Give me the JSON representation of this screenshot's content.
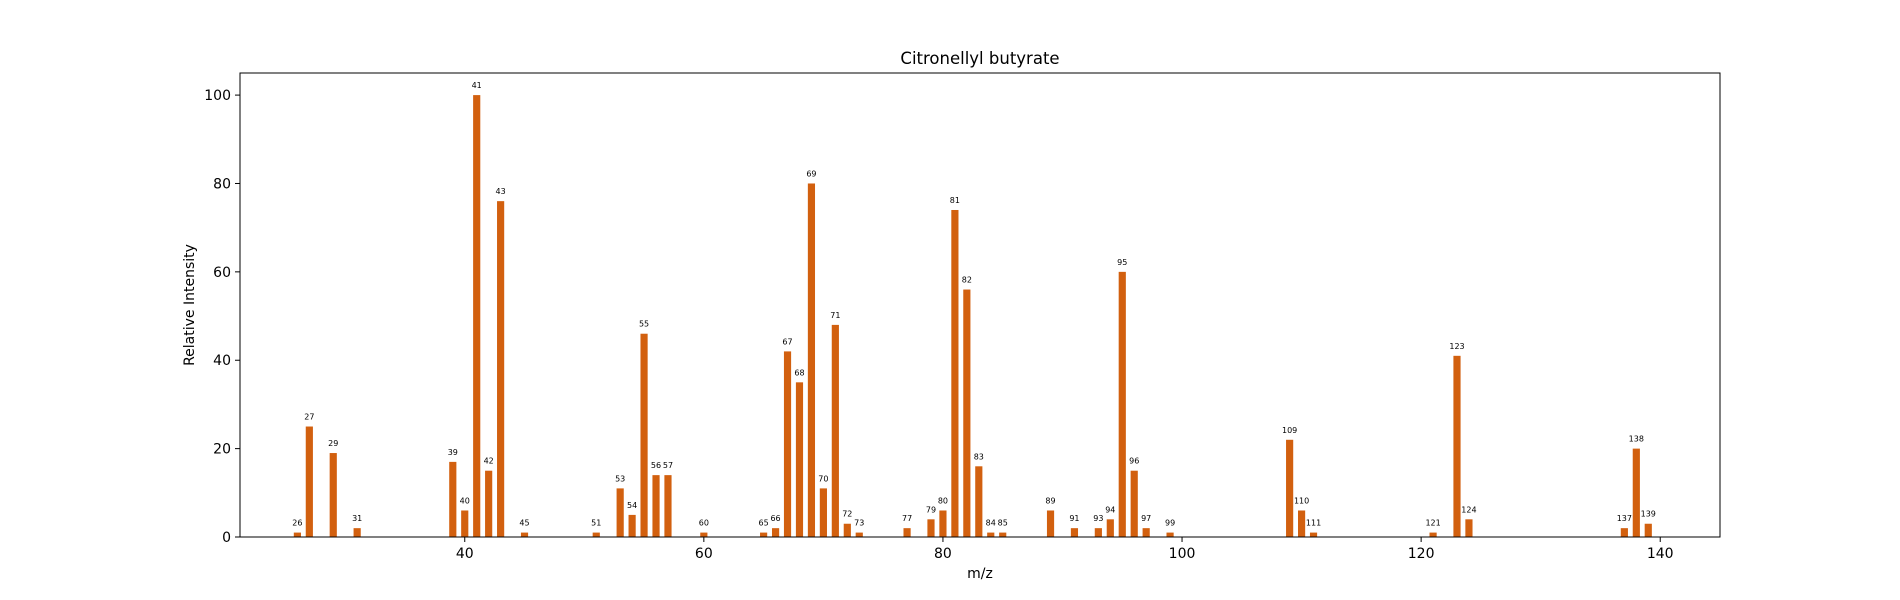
{
  "chart_data": {
    "type": "bar",
    "title": "Citronellyl butyrate",
    "xlabel": "m/z",
    "ylabel": "Relative Intensity",
    "xlim": [
      21.2,
      145.0
    ],
    "ylim": [
      0,
      105
    ],
    "xticks": [
      40,
      60,
      80,
      100,
      120,
      140
    ],
    "yticks": [
      0,
      20,
      40,
      60,
      80,
      100
    ],
    "grid": false,
    "bar_color": "#d2600f",
    "series": [
      {
        "x": [
          26,
          27,
          29,
          31,
          39,
          40,
          41,
          42,
          43,
          45,
          51,
          53,
          54,
          55,
          56,
          57,
          60,
          65,
          66,
          67,
          68,
          69,
          70,
          71,
          72,
          73,
          77,
          79,
          80,
          81,
          82,
          83,
          84,
          85,
          89,
          91,
          93,
          94,
          95,
          96,
          97,
          99,
          109,
          110,
          111,
          121,
          123,
          124,
          137,
          138,
          139
        ],
        "values": [
          1,
          25,
          19,
          2,
          17,
          6,
          100,
          15,
          76,
          1,
          1,
          11,
          5,
          46,
          14,
          14,
          1,
          1,
          2,
          42,
          35,
          80,
          11,
          48,
          3,
          1,
          2,
          4,
          6,
          74,
          56,
          16,
          1,
          1,
          6,
          2,
          2,
          4,
          60,
          15,
          2,
          1,
          22,
          6,
          1,
          1,
          41,
          4,
          2,
          20,
          3
        ],
        "labels": [
          "26",
          "27",
          "29",
          "31",
          "39",
          "40",
          "41",
          "42",
          "43",
          "45",
          "51",
          "53",
          "54",
          "55",
          "56",
          "57",
          "60",
          "65",
          "66",
          "67",
          "68",
          "69",
          "70",
          "71",
          "72",
          "73",
          "77",
          "79",
          "80",
          "81",
          "82",
          "83",
          "84",
          "85",
          "89",
          "91",
          "93",
          "94",
          "95",
          "96",
          "97",
          "99",
          "109",
          "110",
          "111",
          "121",
          "123",
          "124",
          "137",
          "138",
          "139"
        ]
      }
    ]
  }
}
